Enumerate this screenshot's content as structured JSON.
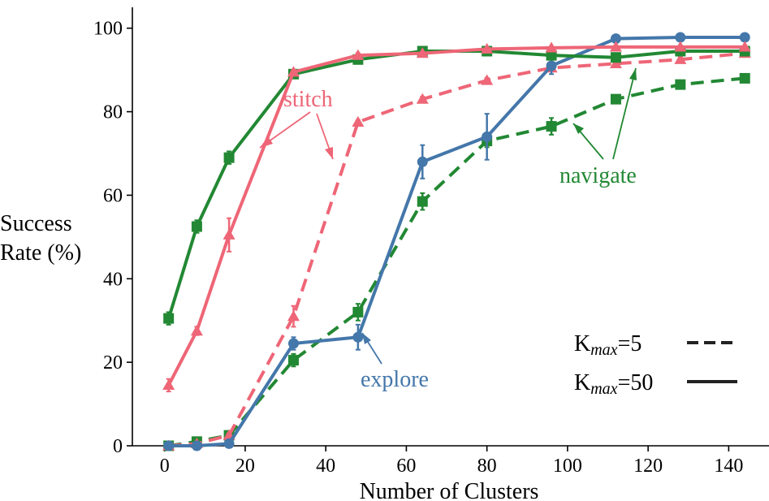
{
  "chart_data": {
    "type": "line",
    "xlabel": "Number of Clusters",
    "ylabel_lines": [
      "Success",
      "Rate (%)"
    ],
    "xlim": [
      -8,
      150
    ],
    "ylim": [
      0,
      105
    ],
    "x_ticks": [
      0,
      20,
      40,
      60,
      80,
      100,
      120,
      140
    ],
    "y_ticks": [
      0,
      20,
      40,
      60,
      80,
      100
    ],
    "grid": false,
    "series": [
      {
        "name": "stitch",
        "kmax": 5,
        "linestyle": "dashed",
        "marker": "triangle",
        "color": "#EE6677",
        "x": [
          1,
          8,
          16,
          32,
          48,
          64,
          80,
          96,
          112,
          128,
          144
        ],
        "y": [
          0,
          0.5,
          2.5,
          31,
          77.5,
          83,
          87.5,
          90.5,
          91.5,
          92.5,
          94
        ],
        "err": [
          0,
          0,
          0.5,
          2.5,
          0.5,
          0.6,
          0.6,
          0.5,
          0.6,
          0.6,
          0.5
        ]
      },
      {
        "name": "stitch",
        "kmax": 50,
        "linestyle": "solid",
        "marker": "triangle",
        "color": "#EE6677",
        "x": [
          1,
          8,
          16,
          32,
          48,
          64,
          80,
          96,
          112,
          128,
          144
        ],
        "y": [
          14.5,
          27.5,
          50.5,
          89.5,
          93.5,
          94,
          95,
          95.3,
          95.5,
          95.5,
          95.5
        ],
        "err": [
          1.5,
          1,
          4,
          0.5,
          0.5,
          0.3,
          0.3,
          0.3,
          0.3,
          0.3,
          0.3
        ]
      },
      {
        "name": "navigate",
        "kmax": 5,
        "linestyle": "dashed",
        "marker": "square",
        "color": "#228833",
        "x": [
          1,
          8,
          16,
          32,
          48,
          64,
          80,
          96,
          112,
          128,
          144
        ],
        "y": [
          0,
          1,
          2.5,
          20.5,
          32,
          58.5,
          73,
          76.5,
          83,
          86.5,
          88
        ],
        "err": [
          0,
          0.5,
          0.5,
          1.5,
          2,
          2,
          1.5,
          2,
          0.6,
          0.5,
          0.5
        ]
      },
      {
        "name": "navigate",
        "kmax": 50,
        "linestyle": "solid",
        "marker": "square",
        "color": "#228833",
        "x": [
          1,
          8,
          16,
          32,
          48,
          64,
          80,
          96,
          112,
          128,
          144
        ],
        "y": [
          30.5,
          52.5,
          69,
          89,
          92.5,
          94.5,
          94.5,
          93.5,
          93,
          94.5,
          94.5
        ],
        "err": [
          1.5,
          1.5,
          1.5,
          0.8,
          0.5,
          0.3,
          0.3,
          0.3,
          0.3,
          0.3,
          0.3
        ]
      },
      {
        "name": "explore",
        "kmax": null,
        "linestyle": "solid",
        "marker": "circle",
        "color": "#4477AA",
        "x": [
          1,
          8,
          16,
          32,
          48,
          64,
          80,
          96,
          112,
          128,
          144
        ],
        "y": [
          0,
          0,
          0.5,
          24.5,
          26,
          68,
          74,
          91,
          97.5,
          97.8,
          97.8
        ],
        "err": [
          0,
          0,
          0,
          1.5,
          3,
          4,
          5.5,
          2,
          0.3,
          0.3,
          0.3
        ]
      }
    ],
    "annotations": [
      {
        "text": "stitch",
        "color": "#EE6677"
      },
      {
        "text": "navigate",
        "color": "#228833"
      },
      {
        "text": "explore",
        "color": "#4477AA"
      }
    ],
    "legend": {
      "placement": "bottom-right",
      "entries": [
        {
          "prefix": "K",
          "sub": "max",
          "suffix": "=5",
          "linestyle": "dashed"
        },
        {
          "prefix": "K",
          "sub": "max",
          "suffix": "=50",
          "linestyle": "solid"
        }
      ]
    }
  }
}
